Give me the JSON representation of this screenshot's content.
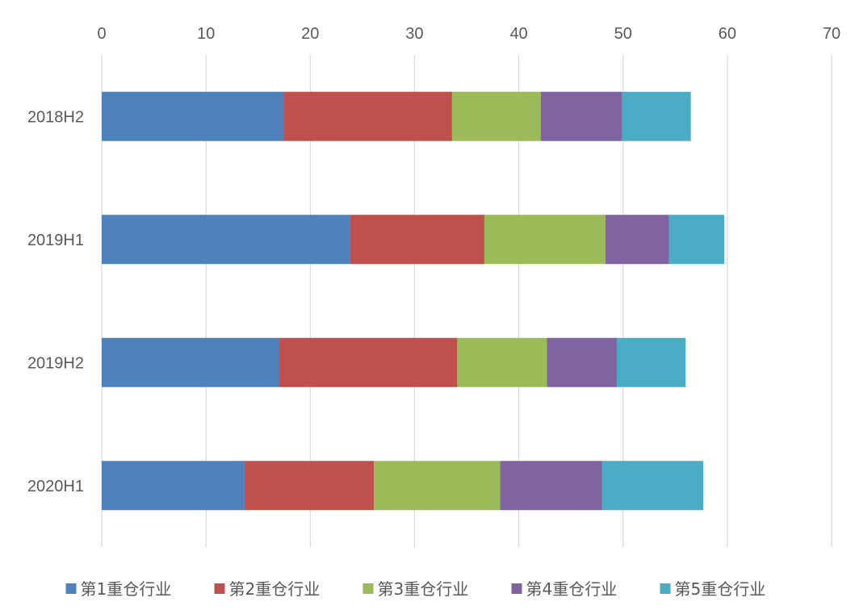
{
  "chart_data": {
    "type": "bar",
    "orientation": "horizontal",
    "stacked": true,
    "title": "",
    "xlabel": "",
    "ylabel": "",
    "categories": [
      "2018H2",
      "2019H1",
      "2019H2",
      "2020H1"
    ],
    "series": [
      {
        "name": "第1重仓行业",
        "color": "#4f81bd",
        "values": [
          17.5,
          23.8,
          17.0,
          13.7
        ]
      },
      {
        "name": "第2重仓行业",
        "color": "#c0504d",
        "values": [
          16.1,
          12.9,
          17.1,
          12.4
        ]
      },
      {
        "name": "第3重仓行业",
        "color": "#9bbb59",
        "values": [
          8.5,
          11.6,
          8.6,
          12.1
        ]
      },
      {
        "name": "第4重仓行业",
        "color": "#8064a2",
        "values": [
          7.8,
          6.1,
          6.7,
          9.8
        ]
      },
      {
        "name": "第5重仓行业",
        "color": "#4bacc6",
        "values": [
          6.6,
          5.3,
          6.6,
          9.7
        ]
      }
    ],
    "xlim": [
      0,
      70
    ],
    "xticks": [
      "0",
      "10",
      "20",
      "30",
      "40",
      "50",
      "60",
      "70"
    ],
    "xaxis_position": "top",
    "grid": true,
    "legend_position": "bottom"
  }
}
